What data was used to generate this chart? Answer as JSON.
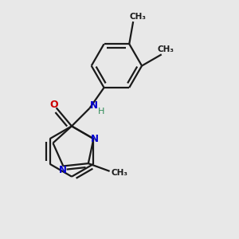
{
  "background_color": "#e8e8e8",
  "bond_color": "#1a1a1a",
  "nitrogen_color": "#0000cd",
  "oxygen_color": "#cc0000",
  "nh_color": "#2e8b57",
  "line_width": 1.6,
  "dbo": 0.055,
  "figsize": [
    3.0,
    3.0
  ],
  "dpi": 100,
  "xlim": [
    -1.8,
    1.8
  ],
  "ylim": [
    -1.8,
    1.8
  ]
}
